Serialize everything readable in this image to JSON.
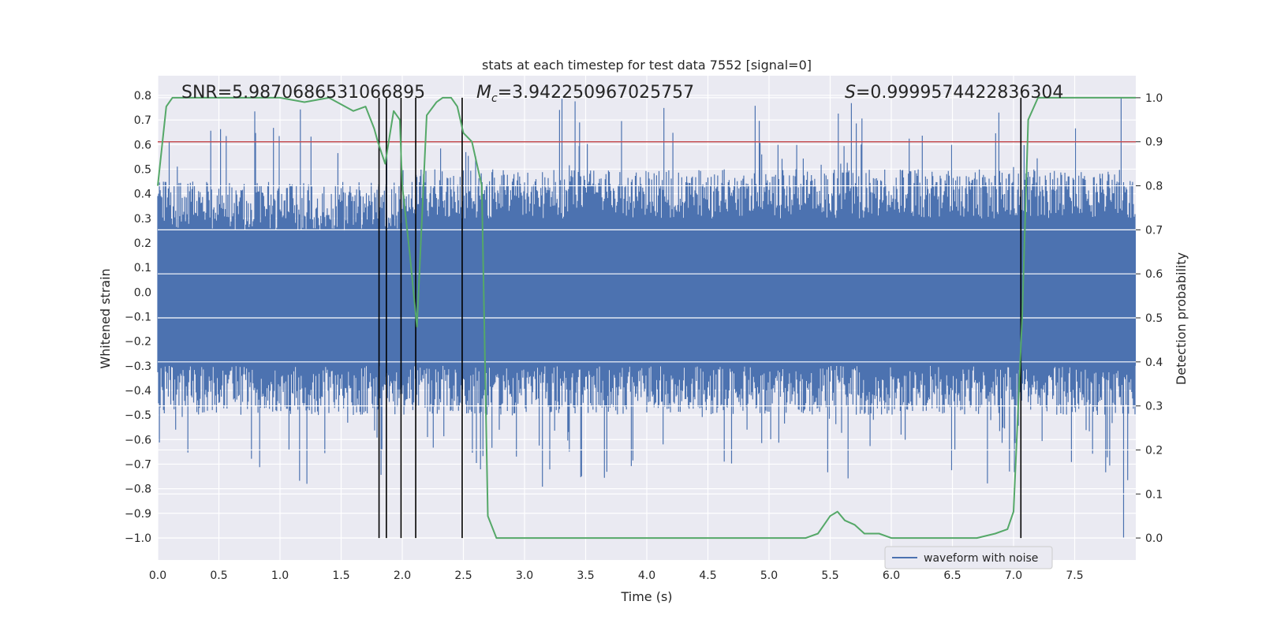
{
  "chart_data": {
    "type": "line",
    "title": "stats at each timestep for test data 7552 [signal=0]",
    "xlabel": "Time (s)",
    "ylabel": "Whitened strain",
    "ylabel_right": "Detection probability",
    "xlim": [
      0,
      8
    ],
    "ylim": [
      -1.09,
      0.88
    ],
    "ylim_right": [
      -0.05,
      1.05
    ],
    "xticks": [
      "0.0",
      "0.5",
      "1.0",
      "1.5",
      "2.0",
      "2.5",
      "3.0",
      "3.5",
      "4.0",
      "4.5",
      "5.0",
      "5.5",
      "6.0",
      "6.5",
      "7.0",
      "7.5"
    ],
    "yticks": [
      "0.8",
      "0.7",
      "0.6",
      "0.5",
      "0.4",
      "0.3",
      "0.2",
      "0.1",
      "0.0",
      "−0.1",
      "−0.2",
      "−0.3",
      "−0.4",
      "−0.5",
      "−0.6",
      "−0.7",
      "−0.8",
      "−0.9",
      "−1.0"
    ],
    "yticks_right": [
      "1.0",
      "0.9",
      "0.8",
      "0.7",
      "0.6",
      "0.5",
      "0.4",
      "0.3",
      "0.2",
      "0.1",
      "0.0"
    ],
    "grid": true,
    "legend": {
      "position": "lower-right",
      "entries": [
        "waveform with noise"
      ]
    },
    "annotations": {
      "snr": "SNR=5.9870686531066895",
      "mc_symbol": "M",
      "mc_sub": "c",
      "mc_value": "=3.942250967025757",
      "s_symbol": "S",
      "s_value": "=0.9999574422836304"
    },
    "colors": {
      "waveform": "#4c72b0",
      "probability": "#55a868",
      "threshold": "#c44e52",
      "markers": "#000000",
      "background": "#eaeaf2",
      "grid": "#ffffff"
    },
    "series": [
      {
        "name": "waveform with noise",
        "axis": "left",
        "envelope_typical_pos": [
          0.25,
          0.25,
          0.3,
          0.3,
          0.3,
          0.3,
          0.3,
          0.3
        ],
        "envelope_typical_neg": [
          -0.3,
          -0.3,
          -0.3,
          -0.3,
          -0.3,
          -0.3,
          -0.3,
          -0.3
        ],
        "peak_max": 0.79,
        "peak_min": -1.0
      },
      {
        "axis": "right",
        "x": [
          0.0,
          0.07,
          0.12,
          0.5,
          1.0,
          1.2,
          1.4,
          1.6,
          1.7,
          1.77,
          1.8,
          1.86,
          1.93,
          1.98,
          2.0,
          2.06,
          2.12,
          2.2,
          2.28,
          2.33,
          2.4,
          2.45,
          2.5,
          2.57,
          2.65,
          2.7,
          2.77,
          3.0,
          3.5,
          4.0,
          4.1,
          4.5,
          4.9,
          5.0,
          5.3,
          5.4,
          5.45,
          5.5,
          5.56,
          5.62,
          5.7,
          5.78,
          5.9,
          6.0,
          6.5,
          6.7,
          6.85,
          6.95,
          7.0,
          7.07,
          7.12,
          7.2,
          7.3,
          8.0
        ],
        "y": [
          0.8,
          0.98,
          1.0,
          1.0,
          1.0,
          0.99,
          1.0,
          0.97,
          0.98,
          0.93,
          0.9,
          0.85,
          0.97,
          0.95,
          0.8,
          0.65,
          0.48,
          0.96,
          0.99,
          1.0,
          1.0,
          0.98,
          0.92,
          0.9,
          0.8,
          0.05,
          0.0,
          0.0,
          0.0,
          0.0,
          0.0,
          0.0,
          0.0,
          0.0,
          0.0,
          0.01,
          0.03,
          0.05,
          0.06,
          0.04,
          0.03,
          0.01,
          0.01,
          0.0,
          0.0,
          0.0,
          0.01,
          0.02,
          0.06,
          0.5,
          0.95,
          1.0,
          1.0,
          1.0
        ]
      },
      {
        "axis": "right",
        "type": "hline",
        "y": 0.9
      },
      {
        "axis": "right",
        "type": "vlines",
        "x": [
          1.81,
          1.87,
          1.99,
          2.11,
          2.49,
          7.06
        ],
        "ymin": 0.0,
        "ymax": 1.0
      }
    ]
  }
}
